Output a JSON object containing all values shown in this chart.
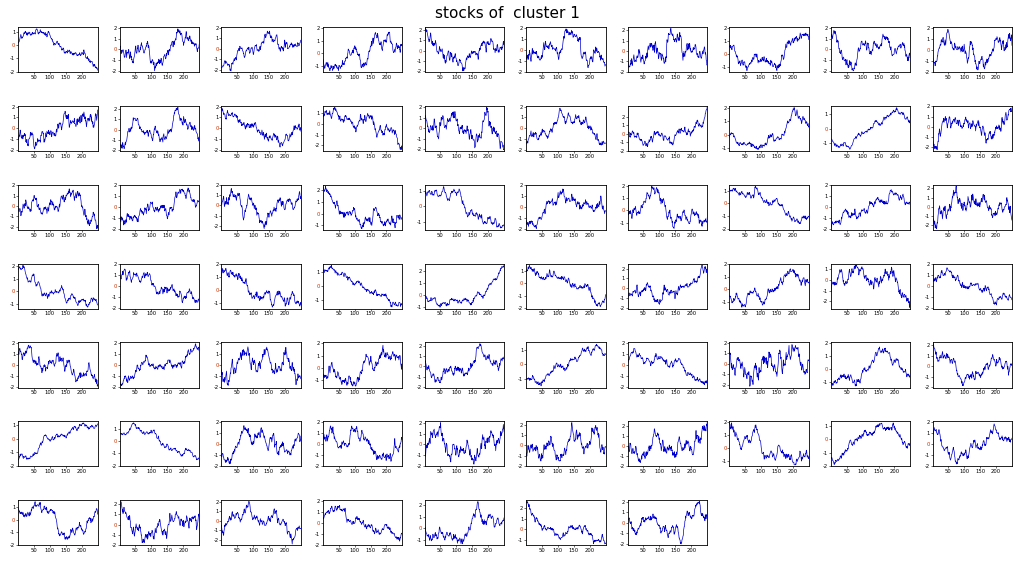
{
  "title": "stocks of  cluster 1",
  "title_fontsize": 11,
  "n_stocks": 67,
  "n_cols": 10,
  "n_rows": 7,
  "n_points": 250,
  "x_tick_positions": [
    50,
    100,
    150,
    200
  ],
  "x_tick_labels": [
    "50",
    "100",
    "150",
    "200"
  ],
  "background_color": "#ffffff",
  "line_color": "#0000cc",
  "line_width": 0.5,
  "tick_fontsize": 3.8,
  "random_seed": 42
}
